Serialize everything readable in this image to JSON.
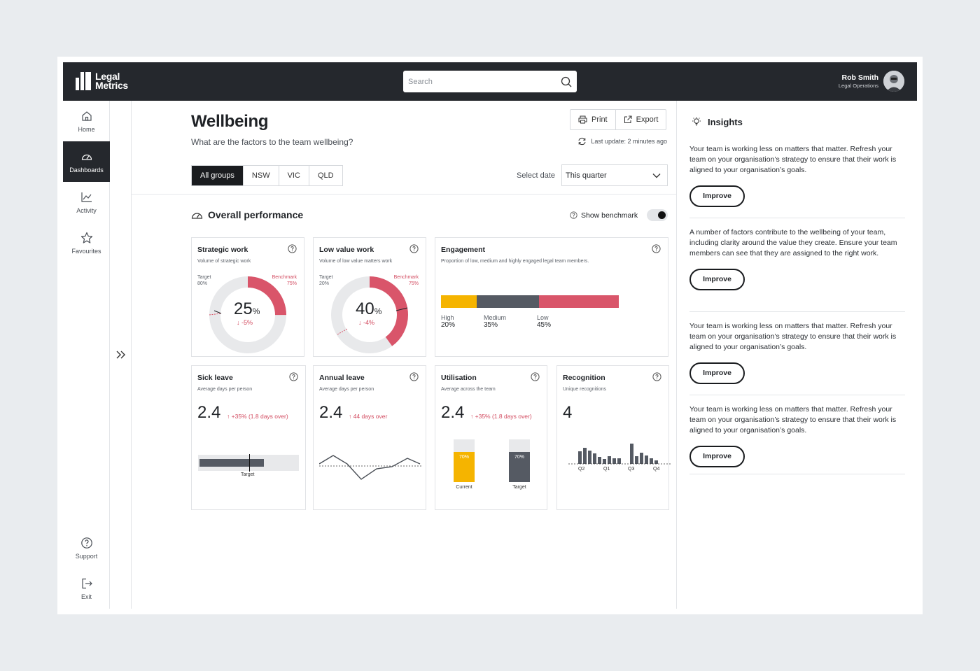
{
  "app": {
    "logo_line1": "Legal",
    "logo_line2": "Metrics"
  },
  "search": {
    "placeholder": "Search"
  },
  "user": {
    "name": "Rob Smith",
    "role": "Legal Operations"
  },
  "nav": {
    "home": "Home",
    "dashboards": "Dashboards",
    "activity": "Activity",
    "favourites": "Favourites",
    "support": "Support",
    "exit": "Exit"
  },
  "page": {
    "title": "Wellbeing",
    "subtitle": "What are the factors to the team wellbeing?",
    "print": "Print",
    "export": "Export",
    "last_update": "Last update: 2 minutes ago"
  },
  "tabs": [
    "All groups",
    "NSW",
    "VIC",
    "QLD"
  ],
  "date": {
    "label": "Select date",
    "value": "This quarter"
  },
  "section": {
    "title": "Overall performance",
    "benchmark": "Show benchmark"
  },
  "cards": {
    "strategic": {
      "title": "Strategic work",
      "sub": "Volume of strategic work",
      "target_label": "Target",
      "target_value": "80%",
      "benchmark_label": "Benchmark",
      "benchmark_value": "75%",
      "value": "25",
      "unit": "%",
      "delta": "-5%",
      "fill": 0.25
    },
    "lowvalue": {
      "title": "Low value work",
      "sub": "Volume of low value matters work",
      "target_label": "Target",
      "target_value": "20%",
      "benchmark_label": "Benchmark",
      "benchmark_value": "75%",
      "value": "40",
      "unit": "%",
      "delta": "-4%",
      "fill": 0.4
    },
    "engagement": {
      "title": "Engagement",
      "sub": "Proportion of low, medium and highly engaged legal team members.",
      "segments": [
        {
          "label": "High",
          "value": "20%",
          "share": 20,
          "color": "#f5b400"
        },
        {
          "label": "Medium",
          "value": "35%",
          "share": 35,
          "color": "#555a63"
        },
        {
          "label": "Low",
          "value": "45%",
          "share": 45,
          "color": "#d9556a"
        }
      ]
    },
    "sick": {
      "title": "Sick leave",
      "sub": "Average days per person",
      "value": "2.4",
      "delta": "+35% (1.8 days over)",
      "target_label": "Target"
    },
    "annual": {
      "title": "Annual leave",
      "sub": "Average days per person",
      "value": "2.4",
      "delta": "44 days over"
    },
    "utilisation": {
      "title": "Utilisation",
      "sub": "Average across the team",
      "value": "2.4",
      "delta": "+35% (1.8 days over)",
      "bars": [
        {
          "label": "Current",
          "value": "70%",
          "color": "#f5b400"
        },
        {
          "label": "Target",
          "value": "70%",
          "color": "#555a63"
        }
      ]
    },
    "recognition": {
      "title": "Recognition",
      "sub": "Unique recognitions",
      "value": "4",
      "quarters": [
        "Q2",
        "Q1",
        "Q3",
        "Q4"
      ]
    }
  },
  "insights": {
    "title": "Insights",
    "items": [
      {
        "text": "Your team is working less on matters that matter. Refresh your team on your organisation’s strategy to ensure that their work is aligned to your organisation’s goals.",
        "button": "Improve"
      },
      {
        "text": "A number of factors contribute to the wellbeing of your team, including clarity around the value they create. Ensure your team members can see that they are assigned to the right work.",
        "button": "Improve"
      },
      {
        "text": "Your team is working less on matters that matter. Refresh your team on your organisation’s strategy to ensure that their work is aligned to your organisation’s goals.",
        "button": "Improve"
      },
      {
        "text": "Your team is working less on matters that matter. Refresh your team on your organisation’s strategy to ensure that their work is aligned to your organisation’s goals.",
        "button": "Improve"
      }
    ]
  },
  "colors": {
    "dark": "#25282d",
    "accent_red": "#d9556a",
    "accent_yellow": "#f5b400",
    "grey": "#555a63"
  }
}
